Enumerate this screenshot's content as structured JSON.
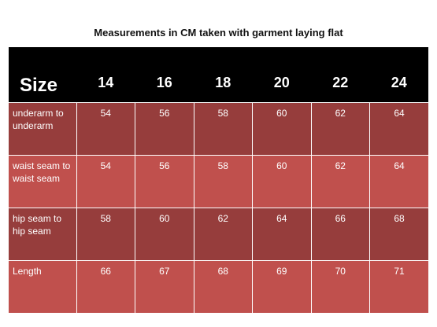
{
  "title": "Measurements in CM taken with garment laying flat",
  "table": {
    "header_label": "Size",
    "sizes": [
      "14",
      "16",
      "18",
      "20",
      "22",
      "24"
    ],
    "rows": [
      {
        "label": "underarm to underarm",
        "values": [
          "54",
          "56",
          "58",
          "60",
          "62",
          "64"
        ]
      },
      {
        "label": "waist seam to waist seam",
        "values": [
          "54",
          "56",
          "58",
          "60",
          "62",
          "64"
        ]
      },
      {
        "label": "hip seam to hip seam",
        "values": [
          "58",
          "60",
          "62",
          "64",
          "66",
          "68"
        ]
      },
      {
        "label": "Length",
        "values": [
          "66",
          "67",
          "68",
          "69",
          "70",
          "71"
        ]
      }
    ]
  },
  "colors": {
    "header_bg": "#000000",
    "row_dark": "#963d3c",
    "row_light": "#c0504d"
  }
}
